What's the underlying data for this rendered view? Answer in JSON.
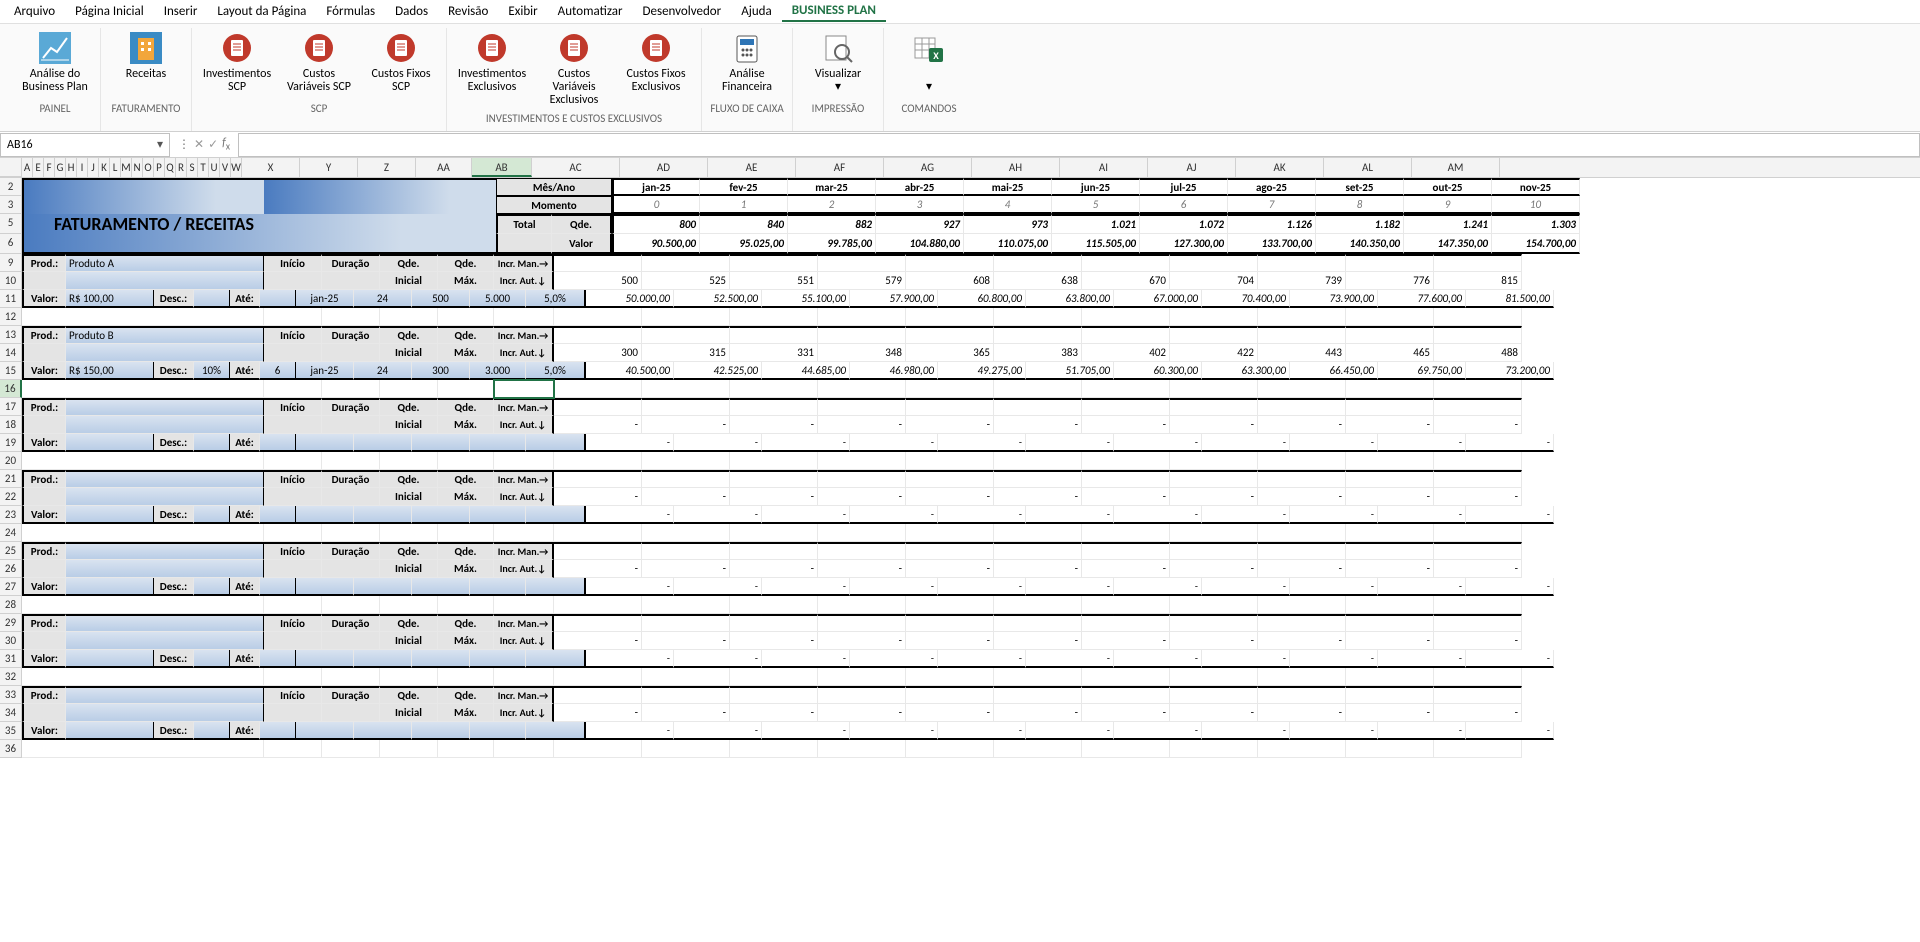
{
  "menubar": [
    "Arquivo",
    "Página Inicial",
    "Inserir",
    "Layout da Página",
    "Fórmulas",
    "Dados",
    "Revisão",
    "Exibir",
    "Automatizar",
    "Desenvolvedor",
    "Ajuda",
    "BUSINESS PLAN"
  ],
  "menubar_active": 11,
  "ribbon_groups": [
    {
      "label": "PAINEL",
      "buttons": [
        {
          "label": "Análise do Business Plan",
          "icon": "chart",
          "color": "#4aa3d6"
        }
      ]
    },
    {
      "label": "FATURAMENTO",
      "buttons": [
        {
          "label": "Receitas",
          "icon": "building",
          "color": "#f28c00"
        }
      ]
    },
    {
      "label": "SCP",
      "buttons": [
        {
          "label": "Investimentos SCP",
          "icon": "doc",
          "color": "#c0392b"
        },
        {
          "label": "Custos Variáveis SCP",
          "icon": "doc",
          "color": "#c0392b"
        },
        {
          "label": "Custos Fixos SCP",
          "icon": "doc",
          "color": "#c0392b"
        }
      ]
    },
    {
      "label": "INVESTIMENTOS E CUSTOS EXCLUSIVOS",
      "buttons": [
        {
          "label": "Investimentos Exclusivos",
          "icon": "doc",
          "color": "#c0392b"
        },
        {
          "label": "Custos Variáveis Exclusivos",
          "icon": "doc",
          "color": "#c0392b"
        },
        {
          "label": "Custos Fixos Exclusivos",
          "icon": "doc",
          "color": "#c0392b"
        }
      ]
    },
    {
      "label": "FLUXO DE CAIXA",
      "buttons": [
        {
          "label": "Análise Financeira",
          "icon": "calc",
          "color": "#2e75b6"
        }
      ]
    },
    {
      "label": "IMPRESSÃO",
      "buttons": [
        {
          "label": "Visualizar",
          "icon": "preview",
          "color": "#666"
        }
      ]
    },
    {
      "label": "COMANDOS",
      "buttons": [
        {
          "label": "",
          "icon": "excel",
          "color": "#217346"
        }
      ]
    }
  ],
  "name_box": "AB16",
  "formula_value": "",
  "narrow_cols": [
    "A",
    "E",
    "F",
    "G",
    "H",
    "I",
    "J",
    "K",
    "L",
    "M",
    "N",
    "O",
    "P",
    "Q",
    "R",
    "S",
    "T",
    "U",
    "V",
    "W"
  ],
  "core_cols": [
    "X",
    "Y",
    "Z",
    "AA",
    "AB"
  ],
  "month_cols": [
    "AC",
    "AD",
    "AE",
    "AF",
    "AG",
    "AH",
    "AI",
    "AJ",
    "AK",
    "AL",
    "AM"
  ],
  "active_col": "AB",
  "title": "FATURAMENTO / RECEITAS",
  "header_rows": {
    "mes_ano_label": "Mês/Ano",
    "momento_label": "Momento",
    "mes_ano": [
      "jan-25",
      "fev-25",
      "mar-25",
      "abr-25",
      "mai-25",
      "jun-25",
      "jul-25",
      "ago-25",
      "set-25",
      "out-25",
      "nov-25"
    ],
    "momento": [
      "0",
      "1",
      "2",
      "3",
      "4",
      "5",
      "6",
      "7",
      "8",
      "9",
      "10"
    ],
    "total_label": "Total",
    "qde_label": "Qde.",
    "valor_label": "Valor",
    "qde": [
      "800",
      "840",
      "882",
      "927",
      "973",
      "1.021",
      "1.072",
      "1.126",
      "1.182",
      "1.241",
      "1.303"
    ],
    "valor": [
      "90.500,00",
      "95.025,00",
      "99.785,00",
      "104.880,00",
      "110.075,00",
      "115.505,00",
      "127.300,00",
      "133.700,00",
      "140.350,00",
      "147.350,00",
      "154.700,00"
    ]
  },
  "block_labels": {
    "prod": "Prod.:",
    "valor": "Valor:",
    "desc": "Desc.:",
    "ate": "Até:",
    "inicio": "Início",
    "duracao": "Duração",
    "qde_inicial": "Qde. Inicial",
    "qde_max": "Qde. Máx.",
    "incr_man": "Incr. Man.→",
    "incr_aut": "Incr. Aut.↓"
  },
  "products": [
    {
      "name": "Produto A",
      "valor": "R$        100,00",
      "desc": "",
      "ate": "",
      "inicio": "jan-25",
      "duracao": "24",
      "qde_inicial": "500",
      "qde_max": "5.000",
      "incr_aut": "5,0%",
      "row1": [
        "500",
        "525",
        "551",
        "579",
        "608",
        "638",
        "670",
        "704",
        "739",
        "776",
        "815"
      ],
      "row2": [
        "50.000,00",
        "52.500,00",
        "55.100,00",
        "57.900,00",
        "60.800,00",
        "63.800,00",
        "67.000,00",
        "70.400,00",
        "73.900,00",
        "77.600,00",
        "81.500,00"
      ]
    },
    {
      "name": "Produto B",
      "valor": "R$        150,00",
      "desc": "10%",
      "ate": "6",
      "inicio": "jan-25",
      "duracao": "24",
      "qde_inicial": "300",
      "qde_max": "3.000",
      "incr_aut": "5,0%",
      "row1": [
        "300",
        "315",
        "331",
        "348",
        "365",
        "383",
        "402",
        "422",
        "443",
        "465",
        "488"
      ],
      "row2": [
        "40.500,00",
        "42.525,00",
        "44.685,00",
        "46.980,00",
        "49.275,00",
        "51.705,00",
        "60.300,00",
        "63.300,00",
        "66.450,00",
        "69.750,00",
        "73.200,00"
      ]
    },
    {
      "name": "",
      "valor": "",
      "desc": "",
      "ate": "",
      "inicio": "",
      "duracao": "",
      "qde_inicial": "",
      "qde_max": "",
      "incr_aut": "",
      "row1": [
        "-",
        "-",
        "-",
        "-",
        "-",
        "-",
        "-",
        "-",
        "-",
        "-",
        "-"
      ],
      "row2": [
        "-",
        "-",
        "-",
        "-",
        "-",
        "-",
        "-",
        "-",
        "-",
        "-",
        "-"
      ]
    },
    {
      "name": "",
      "valor": "",
      "desc": "",
      "ate": "",
      "inicio": "",
      "duracao": "",
      "qde_inicial": "",
      "qde_max": "",
      "incr_aut": "",
      "row1": [
        "-",
        "-",
        "-",
        "-",
        "-",
        "-",
        "-",
        "-",
        "-",
        "-",
        "-"
      ],
      "row2": [
        "-",
        "-",
        "-",
        "-",
        "-",
        "-",
        "-",
        "-",
        "-",
        "-",
        "-"
      ]
    },
    {
      "name": "",
      "valor": "",
      "desc": "",
      "ate": "",
      "inicio": "",
      "duracao": "",
      "qde_inicial": "",
      "qde_max": "",
      "incr_aut": "",
      "row1": [
        "-",
        "-",
        "-",
        "-",
        "-",
        "-",
        "-",
        "-",
        "-",
        "-",
        "-"
      ],
      "row2": [
        "-",
        "-",
        "-",
        "-",
        "-",
        "-",
        "-",
        "-",
        "-",
        "-",
        "-"
      ]
    },
    {
      "name": "",
      "valor": "",
      "desc": "",
      "ate": "",
      "inicio": "",
      "duracao": "",
      "qde_inicial": "",
      "qde_max": "",
      "incr_aut": "",
      "row1": [
        "-",
        "-",
        "-",
        "-",
        "-",
        "-",
        "-",
        "-",
        "-",
        "-",
        "-"
      ],
      "row2": [
        "-",
        "-",
        "-",
        "-",
        "-",
        "-",
        "-",
        "-",
        "-",
        "-",
        "-"
      ]
    },
    {
      "name": "",
      "valor": "",
      "desc": "",
      "ate": "",
      "inicio": "",
      "duracao": "",
      "qde_inicial": "",
      "qde_max": "",
      "incr_aut": "",
      "row1": [
        "-",
        "-",
        "-",
        "-",
        "-",
        "-",
        "-",
        "-",
        "-",
        "-",
        "-"
      ],
      "row2": [
        "-",
        "-",
        "-",
        "-",
        "-",
        "-",
        "-",
        "-",
        "-",
        "-",
        "-"
      ]
    }
  ],
  "row_numbers_visible": [
    "2",
    "3",
    "5",
    "6",
    "9",
    "10",
    "11",
    "12",
    "13",
    "14",
    "15",
    "16",
    "17",
    "18",
    "19",
    "20",
    "21",
    "22",
    "23",
    "24",
    "25",
    "26",
    "27",
    "28",
    "29",
    "30",
    "31",
    "32",
    "33",
    "34",
    "35",
    "36"
  ],
  "active_row": 16,
  "colors": {
    "excel_green": "#217346",
    "grid_border": "#d0d0d0",
    "header_bg": "#e4e4e4",
    "blue_grad_from": "#d9e3f0",
    "blue_grad_to": "#b9cde6",
    "title_from": "#4a7bc0",
    "title_to": "#cfdceb"
  }
}
